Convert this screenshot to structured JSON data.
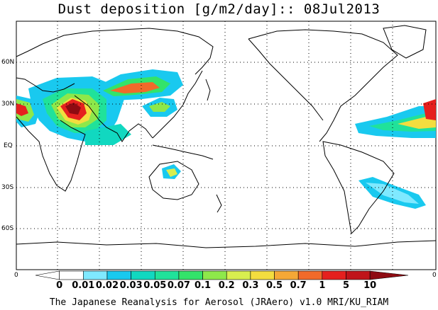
{
  "title": "Dust deposition [g/m2/day]:: 08Jul2013",
  "latitude_labels": [
    "60N",
    "30N",
    "EQ",
    "30S",
    "60S"
  ],
  "edge_labels": {
    "left": "0",
    "right": "0"
  },
  "colorbar": {
    "labels": [
      "0",
      "0.01",
      "0.02",
      "0.03",
      "0.05",
      "0.07",
      "0.1",
      "0.2",
      "0.3",
      "0.5",
      "0.7",
      "1",
      "5",
      "10"
    ],
    "colors": [
      "#ffffff",
      "#ffffff",
      "#7fe9ff",
      "#19c9ef",
      "#11d8c0",
      "#20e29a",
      "#33e36a",
      "#8ee84a",
      "#d8ee4f",
      "#f3dd3f",
      "#f5a836",
      "#f16a2a",
      "#e5201e",
      "#c0141a",
      "#8e0b12"
    ]
  },
  "credit": "The Japanese Reanalysis for Aerosol (JRAero) v1.0 MRI/KU_RIAM"
}
